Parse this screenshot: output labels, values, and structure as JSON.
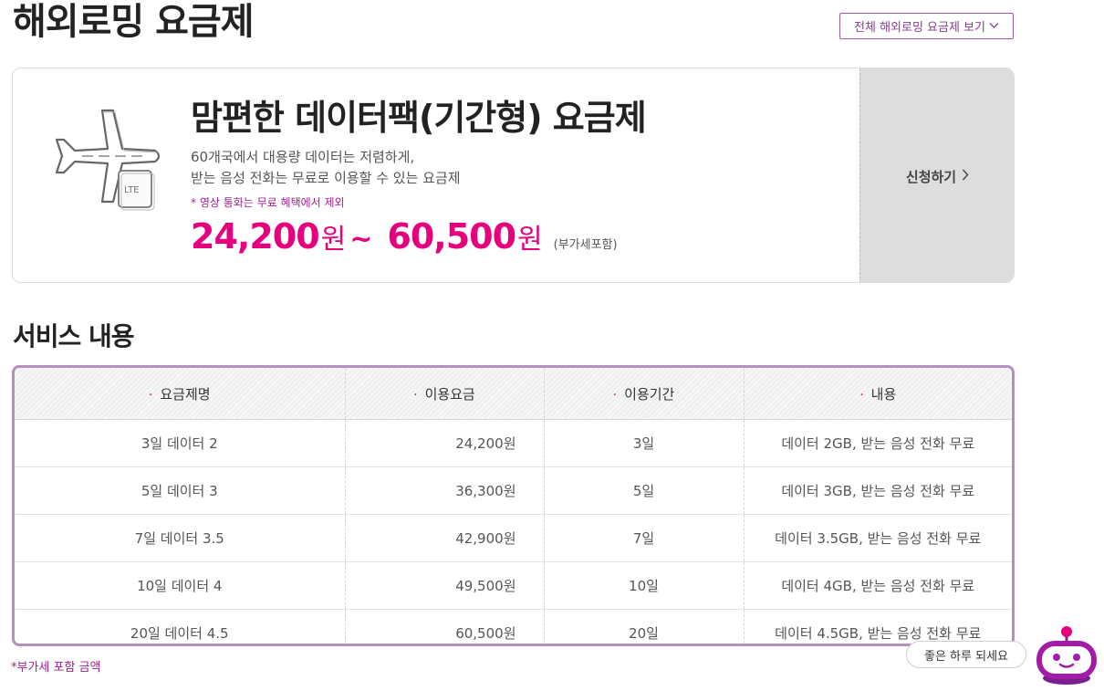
{
  "header": {
    "title": "해외로밍 요금제",
    "all_plans_label": "전체 해외로밍 요금제 보기"
  },
  "plan": {
    "name": "맘편한 데이터팩(기간형) 요금제",
    "desc_line1": "60개국에서 대용량 데이터는 저렴하게,",
    "desc_line2": "받는 음성 전화는 무료로 이용할 수 있는 요금제",
    "note": "* 영상 통화는 무료 혜택에서 제외",
    "price_min": "24,200",
    "price_max": "60,500",
    "currency": "원",
    "tilde": "~",
    "vat_note": "(부가세포함)",
    "icon_badge": "LTE",
    "apply_label": "신청하기"
  },
  "services": {
    "title": "서비스 내용",
    "headers": [
      "요금제명",
      "이용요금",
      "이용기간",
      "내용"
    ],
    "rows": [
      [
        "3일 데이터 2",
        "24,200원",
        "3일",
        "데이터 2GB, 받는 음성 전화 무료"
      ],
      [
        "5일 데이터 3",
        "36,300원",
        "5일",
        "데이터 3GB, 받는 음성 전화 무료"
      ],
      [
        "7일 데이터 3.5",
        "42,900원",
        "7일",
        "데이터 3.5GB, 받는 음성 전화 무료"
      ],
      [
        "10일 데이터 4",
        "49,500원",
        "10일",
        "데이터 4GB, 받는 음성 전화 무료"
      ],
      [
        "20일 데이터 4.5",
        "60,500원",
        "20일",
        "데이터 4.5GB, 받는 음성 전화 무료"
      ]
    ],
    "footnote": "*부가세 포함 금액"
  },
  "chatbot": {
    "bubble": "좋은 하루 되세요"
  },
  "colors": {
    "accent_pink": "#e6007e",
    "accent_purple": "#a0228e",
    "table_border": "#b48fc0",
    "apply_bg": "#dddddd"
  },
  "icons": {
    "plane": "airplane-icon",
    "chevron_down": "chevron-down-icon",
    "chevron_right": "chevron-right-icon",
    "bot": "chatbot-icon"
  }
}
